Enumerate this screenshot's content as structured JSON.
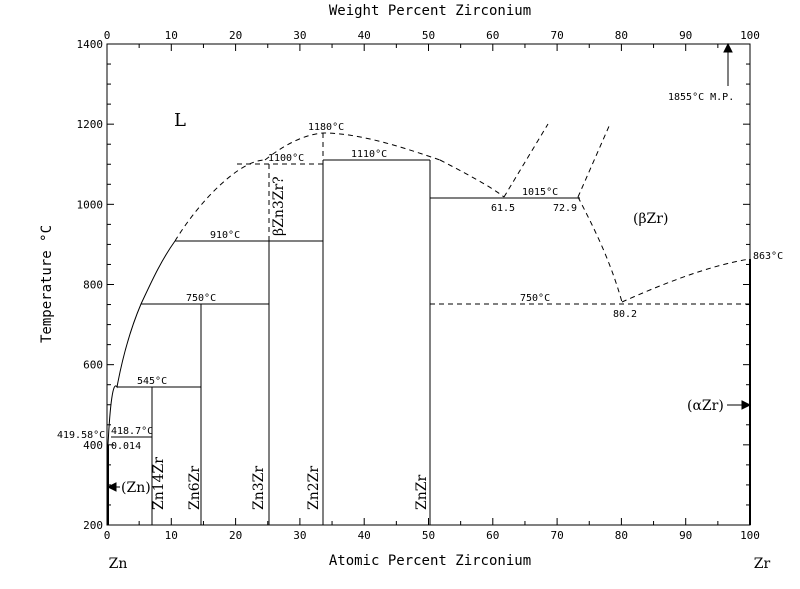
{
  "axes": {
    "top_title": "Weight Percent Zirconium",
    "bottom_title": "Atomic Percent Zirconium",
    "left_title": "Temperature °C",
    "left_element": "Zn",
    "right_element": "Zr",
    "x_ticks": [
      "0",
      "10",
      "20",
      "30",
      "40",
      "50",
      "60",
      "70",
      "80",
      "90",
      "100"
    ],
    "top_ticks": [
      "0",
      "10",
      "20",
      "30",
      "40",
      "50",
      "60",
      "70",
      "80",
      "90",
      "100"
    ],
    "y_ticks": [
      "200",
      "400",
      "600",
      "800",
      "1000",
      "1200",
      "1400"
    ],
    "x_range": [
      0,
      100
    ],
    "y_range": [
      200,
      1400
    ]
  },
  "labels": {
    "liquid": "L",
    "mp": "1855°C  M.P.",
    "t1180": "1180°C",
    "t1100": "1100°C",
    "t1110": "1110°C",
    "t1015": "1015°C",
    "c615": "61.5",
    "c729": "72.9",
    "beta": "(βZr)",
    "t910": "910°C",
    "t750a": "750°C",
    "t750b": "750°C",
    "c802": "80.2",
    "t863": "863°C",
    "t545": "545°C",
    "alpha": "(αZr)",
    "t41956": "419.58°C",
    "t4187": "418.7°C",
    "c0014": "0.014",
    "znphase": "(Zn)",
    "ph_zn14zr": "Zn14Zr",
    "ph_zn6zr": "Zn6Zr",
    "ph_zn3zr": "Zn3Zr",
    "ph_zn2zr": "Zn2Zr",
    "ph_znzr": "ZnZr",
    "ph_betazn3zr": "βZn3Zr?"
  }
}
